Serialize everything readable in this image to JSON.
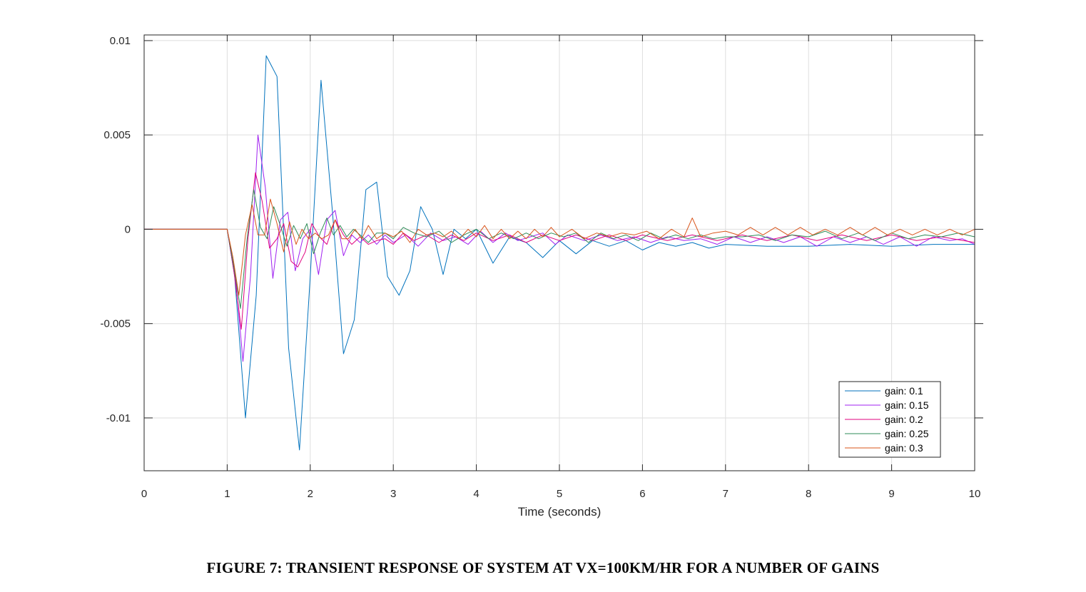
{
  "caption": "FIGURE 7: TRANSIENT RESPONSE OF SYSTEM AT VX=100KM/HR FOR A NUMBER OF GAINS",
  "chart_data": {
    "type": "line",
    "title": "",
    "xlabel": "Time (seconds)",
    "ylabel": "",
    "xlim": [
      0,
      10
    ],
    "ylim": [
      -0.0128,
      0.0103
    ],
    "xticks": [
      0,
      1,
      2,
      3,
      4,
      5,
      6,
      7,
      8,
      9,
      10
    ],
    "yticks": [
      -0.01,
      -0.005,
      0,
      0.005,
      0.01
    ],
    "xtick_labels": [
      "0",
      "1",
      "2",
      "3",
      "4",
      "5",
      "6",
      "7",
      "8",
      "9",
      "10"
    ],
    "ytick_labels": [
      "-0.01",
      "-0.005",
      "0",
      "0.005",
      "0.01"
    ],
    "grid": true,
    "legend_position": "bottom-right",
    "series": [
      {
        "name": "gain: 0.1",
        "color": "#0072BD",
        "x": [
          0,
          0.5,
          1.0,
          1.09,
          1.22,
          1.35,
          1.47,
          1.6,
          1.74,
          1.87,
          2.0,
          2.13,
          2.27,
          2.4,
          2.53,
          2.67,
          2.8,
          2.93,
          3.07,
          3.2,
          3.33,
          3.47,
          3.6,
          3.73,
          3.87,
          4.0,
          4.2,
          4.4,
          4.6,
          4.8,
          5.0,
          5.2,
          5.4,
          5.6,
          5.8,
          6.0,
          6.2,
          6.4,
          6.6,
          6.8,
          7.0,
          7.5,
          8.0,
          8.5,
          9.0,
          9.5,
          10.0
        ],
        "y": [
          0,
          0,
          0,
          -0.0025,
          -0.01,
          -0.0035,
          0.0092,
          0.0081,
          -0.0063,
          -0.0117,
          -0.0025,
          0.0079,
          0.0008,
          -0.0066,
          -0.0048,
          0.0021,
          0.0025,
          -0.0025,
          -0.0035,
          -0.0022,
          0.0012,
          0.0,
          -0.0024,
          0.0,
          -0.0005,
          0.0,
          -0.0018,
          -0.0004,
          -0.0007,
          -0.0015,
          -0.0006,
          -0.0013,
          -0.0006,
          -0.0009,
          -0.0006,
          -0.0011,
          -0.0007,
          -0.0009,
          -0.0007,
          -0.001,
          -0.0008,
          -0.0009,
          -0.0009,
          -0.0008,
          -0.0009,
          -0.0008,
          -0.0008
        ]
      },
      {
        "name": "gain: 0.15",
        "color": "#A020F0",
        "x": [
          0,
          0.5,
          1.0,
          1.1,
          1.19,
          1.28,
          1.37,
          1.46,
          1.55,
          1.64,
          1.73,
          1.82,
          1.91,
          2.0,
          2.1,
          2.2,
          2.3,
          2.4,
          2.5,
          2.6,
          2.7,
          2.8,
          2.9,
          3.0,
          3.15,
          3.3,
          3.45,
          3.6,
          3.75,
          3.9,
          4.05,
          4.2,
          4.35,
          4.5,
          4.65,
          4.8,
          4.95,
          5.1,
          5.3,
          5.5,
          5.7,
          5.9,
          6.1,
          6.3,
          6.5,
          6.7,
          6.9,
          7.1,
          7.3,
          7.5,
          7.7,
          7.9,
          8.1,
          8.3,
          8.5,
          8.7,
          8.9,
          9.1,
          9.3,
          9.5,
          9.7,
          9.85,
          10.0
        ],
        "y": [
          0,
          0,
          0,
          -0.0025,
          -0.007,
          -0.0025,
          0.005,
          0.0022,
          -0.0026,
          0.0005,
          0.0009,
          -0.0022,
          -0.0005,
          0.0,
          -0.0024,
          0.0005,
          0.001,
          -0.0014,
          -0.0003,
          -0.0007,
          -0.0003,
          -0.0008,
          -0.0003,
          -0.0007,
          -0.0003,
          -0.0009,
          -0.0002,
          -0.0006,
          -0.0004,
          -0.0008,
          -0.0001,
          -0.0007,
          -0.0002,
          -0.0006,
          -0.0004,
          -0.0002,
          -0.0008,
          -0.0003,
          -0.0006,
          -0.0003,
          -0.0006,
          -0.0004,
          -0.0007,
          -0.0004,
          -0.0006,
          -0.0005,
          -0.0008,
          -0.0004,
          -0.0007,
          -0.0004,
          -0.0007,
          -0.0004,
          -0.0009,
          -0.0004,
          -0.0007,
          -0.0004,
          -0.0008,
          -0.0004,
          -0.0009,
          -0.0004,
          -0.0006,
          -0.0005,
          -0.0008
        ]
      },
      {
        "name": "gain: 0.2",
        "color": "#E0007F",
        "x": [
          0,
          0.5,
          1.0,
          1.08,
          1.17,
          1.25,
          1.34,
          1.42,
          1.51,
          1.6,
          1.68,
          1.77,
          1.85,
          1.94,
          2.02,
          2.11,
          2.2,
          2.3,
          2.4,
          2.5,
          2.6,
          2.7,
          2.8,
          2.9,
          3.0,
          3.12,
          3.25,
          3.4,
          3.55,
          3.7,
          3.85,
          4.0,
          4.2,
          4.4,
          4.6,
          4.8,
          5.0,
          5.2,
          5.4,
          5.6,
          5.8,
          6.0,
          6.3,
          6.6,
          6.9,
          7.2,
          7.5,
          7.8,
          8.1,
          8.4,
          8.7,
          9.0,
          9.3,
          9.6,
          10.0
        ],
        "y": [
          0,
          0,
          0,
          -0.0022,
          -0.0053,
          -0.0005,
          0.003,
          0.0015,
          -0.001,
          -0.0005,
          0.0003,
          -0.0017,
          -0.002,
          -0.0012,
          0.0003,
          -0.0004,
          -0.0008,
          0.0005,
          -0.0003,
          -0.0008,
          -0.0004,
          -0.0008,
          -0.0006,
          -0.0005,
          -0.0008,
          -0.0002,
          -0.0006,
          -0.0003,
          -0.0007,
          -0.0003,
          -0.0006,
          -0.0002,
          -0.0006,
          -0.0003,
          -0.0007,
          -0.0003,
          -0.0006,
          -0.0003,
          -0.0006,
          -0.0003,
          -0.0006,
          -0.0003,
          -0.0006,
          -0.0003,
          -0.0006,
          -0.0003,
          -0.0006,
          -0.0003,
          -0.0006,
          -0.0003,
          -0.0006,
          -0.0003,
          -0.0006,
          -0.0004,
          -0.0007
        ]
      },
      {
        "name": "gain: 0.25",
        "color": "#2E8B57",
        "x": [
          0,
          0.5,
          1.0,
          1.08,
          1.16,
          1.24,
          1.32,
          1.4,
          1.48,
          1.56,
          1.64,
          1.72,
          1.8,
          1.88,
          1.96,
          2.04,
          2.12,
          2.2,
          2.28,
          2.36,
          2.44,
          2.52,
          2.6,
          2.7,
          2.8,
          2.9,
          3.0,
          3.12,
          3.25,
          3.4,
          3.55,
          3.7,
          3.85,
          4.0,
          4.15,
          4.3,
          4.45,
          4.6,
          4.75,
          4.9,
          5.05,
          5.2,
          5.35,
          5.5,
          5.65,
          5.8,
          5.95,
          6.1,
          6.25,
          6.4,
          6.55,
          6.7,
          6.85,
          7.0,
          7.2,
          7.4,
          7.6,
          7.8,
          8.0,
          8.2,
          8.4,
          8.6,
          8.8,
          9.0,
          9.2,
          9.4,
          9.6,
          9.8,
          10.0
        ],
        "y": [
          0,
          0,
          0,
          -0.002,
          -0.0042,
          -0.0005,
          0.0021,
          0.0001,
          -0.0005,
          0.0012,
          0.0002,
          -0.0009,
          0.0002,
          -0.0005,
          0.0003,
          -0.0013,
          -0.0002,
          0.0006,
          -0.0003,
          0.0002,
          -0.0004,
          0.0,
          -0.0003,
          -0.0007,
          -0.0002,
          -0.0002,
          -0.0005,
          0.0001,
          -0.0002,
          -0.0004,
          -0.0001,
          -0.0007,
          -0.0003,
          0.0,
          -0.0005,
          -0.0002,
          -0.0005,
          -0.0002,
          -0.0005,
          -0.0002,
          -0.0004,
          -0.0002,
          -0.0007,
          -0.0002,
          -0.0005,
          -0.0003,
          -0.0006,
          -0.0002,
          -0.0005,
          -0.0003,
          -0.0005,
          -0.0003,
          -0.0005,
          -0.0004,
          -0.0004,
          -0.0003,
          -0.0006,
          -0.0003,
          -0.0004,
          -0.0001,
          -0.0005,
          -0.0002,
          -0.0006,
          -0.0002,
          -0.0005,
          -0.0003,
          -0.0004,
          -0.0002,
          -0.0004
        ]
      },
      {
        "name": "gain: 0.3",
        "color": "#D9541A",
        "x": [
          0,
          0.5,
          1.0,
          1.07,
          1.14,
          1.22,
          1.3,
          1.37,
          1.45,
          1.52,
          1.6,
          1.68,
          1.75,
          1.83,
          1.9,
          1.98,
          2.06,
          2.14,
          2.22,
          2.3,
          2.38,
          2.46,
          2.54,
          2.62,
          2.7,
          2.8,
          2.9,
          3.0,
          3.1,
          3.2,
          3.3,
          3.4,
          3.5,
          3.6,
          3.7,
          3.8,
          3.9,
          4.0,
          4.1,
          4.2,
          4.3,
          4.4,
          4.5,
          4.6,
          4.7,
          4.8,
          4.9,
          5.0,
          5.15,
          5.3,
          5.45,
          5.6,
          5.75,
          5.9,
          6.05,
          6.2,
          6.35,
          6.5,
          6.6,
          6.7,
          6.85,
          7.0,
          7.15,
          7.3,
          7.45,
          7.6,
          7.75,
          7.9,
          8.05,
          8.2,
          8.35,
          8.5,
          8.65,
          8.8,
          8.95,
          9.1,
          9.25,
          9.4,
          9.55,
          9.7,
          9.85,
          10.0
        ],
        "y": [
          0,
          0,
          0,
          -0.0015,
          -0.0035,
          -0.0003,
          0.0013,
          -0.0003,
          -0.0003,
          0.0016,
          0.0003,
          -0.0012,
          0.0004,
          -0.0008,
          0.0,
          -0.0005,
          -0.0002,
          -0.0005,
          -0.0003,
          0.0005,
          -0.0005,
          -0.0005,
          0.0,
          -0.0005,
          0.0002,
          -0.0005,
          -0.0002,
          -0.0004,
          -0.0001,
          -0.0007,
          0.0,
          -0.0003,
          -0.0002,
          -0.0004,
          -0.0001,
          -0.0005,
          0.0,
          -0.0004,
          0.0002,
          -0.0005,
          0.0,
          -0.0005,
          -0.0001,
          -0.0005,
          0.0,
          -0.0004,
          0.0001,
          -0.0004,
          0.0,
          -0.0005,
          -0.0002,
          -0.0004,
          -0.0002,
          -0.0003,
          -0.0001,
          -0.0005,
          0.0,
          -0.0004,
          0.0006,
          -0.0004,
          -0.0002,
          -0.0001,
          -0.0003,
          0.0001,
          -0.0003,
          0.0001,
          -0.0003,
          0.0001,
          -0.0003,
          0.0,
          -0.0003,
          0.0001,
          -0.0003,
          0.0001,
          -0.0003,
          0.0,
          -0.0003,
          0.0,
          -0.0003,
          0.0,
          -0.0003,
          0.0
        ]
      }
    ]
  }
}
